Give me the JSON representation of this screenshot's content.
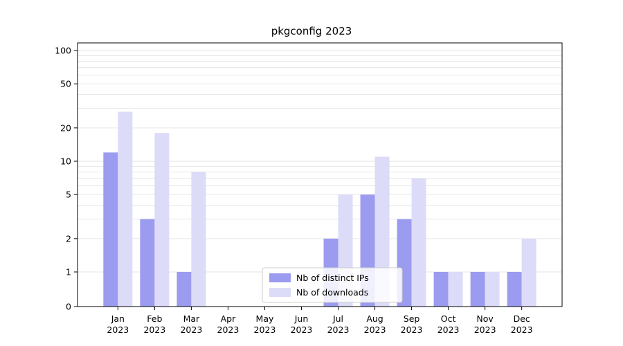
{
  "figure": {
    "title": "pkgconfig 2023"
  },
  "chart_data": {
    "type": "bar",
    "title": "pkgconfig 2023",
    "categories": [
      "Jan 2023",
      "Feb 2023",
      "Mar 2023",
      "Apr 2023",
      "May 2023",
      "Jun 2023",
      "Jul 2023",
      "Aug 2023",
      "Sep 2023",
      "Oct 2023",
      "Nov 2023",
      "Dec 2023"
    ],
    "series": [
      {
        "name": "Nb of distinct IPs",
        "color": "#9b9bef",
        "values": [
          12,
          3,
          1,
          0,
          0,
          0,
          2,
          5,
          3,
          1,
          1,
          1
        ]
      },
      {
        "name": "Nb of downloads",
        "color": "#dcdcf9",
        "values": [
          28,
          18,
          8,
          0,
          0,
          0,
          5,
          11,
          7,
          1,
          1,
          2
        ]
      }
    ],
    "yscale": "symlog",
    "yticks": [
      0,
      1,
      2,
      5,
      10,
      20,
      50,
      100
    ],
    "ylim": [
      0,
      115
    ],
    "xlabel": "",
    "ylabel": "",
    "grid": "horizontal",
    "legend_position": "lower center"
  },
  "colors": {
    "grid": "#e6e6e6",
    "axis": "#000000",
    "tick_text": "#000000",
    "legend_border": "#cccccc",
    "background": "#ffffff"
  }
}
